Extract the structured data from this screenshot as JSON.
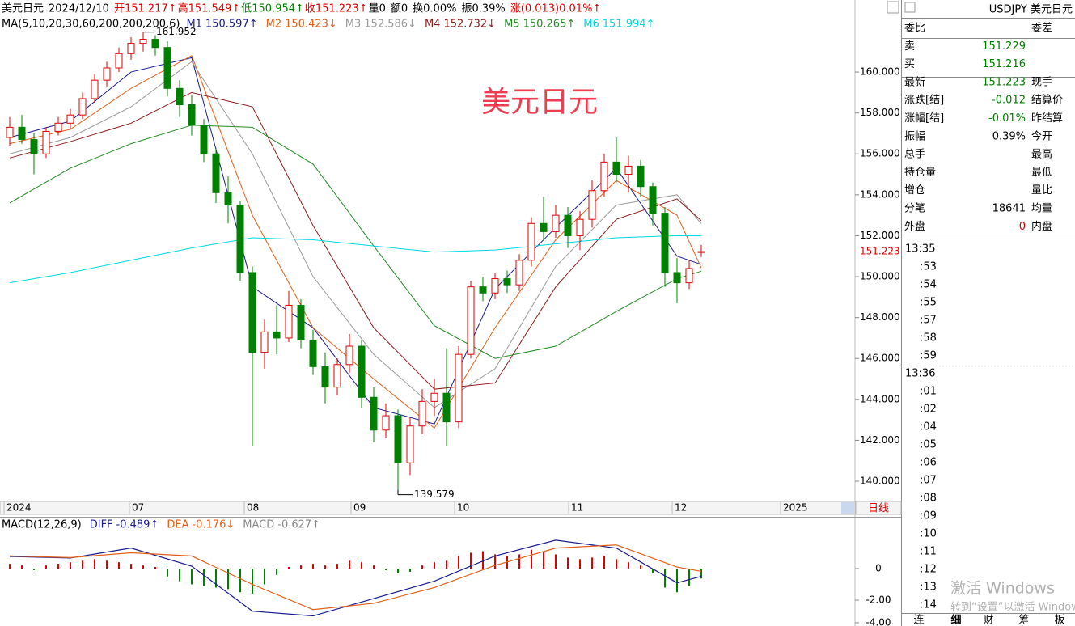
{
  "header": {
    "items": [
      {
        "text": "美元日元",
        "color": "#000000"
      },
      {
        "text": "2024/12/10",
        "color": "#000000"
      },
      {
        "text": "开151.217↑",
        "color": "#e00000"
      },
      {
        "text": "高151.549↑",
        "color": "#e00000"
      },
      {
        "text": "低150.954↑",
        "color": "#008000"
      },
      {
        "text": "收151.223↑",
        "color": "#e00000"
      },
      {
        "text": "量0",
        "color": "#000000"
      },
      {
        "text": "额0",
        "color": "#000000"
      },
      {
        "text": "换0.00%",
        "color": "#000000"
      },
      {
        "text": "振0.39%",
        "color": "#000000"
      },
      {
        "text": "涨(0.013)0.01%↑",
        "color": "#e00000"
      }
    ]
  },
  "watermark": "美元日元",
  "chart_data": [
    {
      "type": "candlestick",
      "ma_title": "MA(5,10,20,30,60,200,200,200,6)",
      "up_color": "#e00000",
      "down_color": "#008000",
      "ylim": [
        139.21,
        163.52
      ],
      "yticks": [
        {
          "value": 140,
          "label": "140.000"
        },
        {
          "value": 142,
          "label": "142.000"
        },
        {
          "value": 144,
          "label": "144.000"
        },
        {
          "value": 146,
          "label": "146.000"
        },
        {
          "value": 148,
          "label": "148.000"
        },
        {
          "value": 150,
          "label": "150.000"
        },
        {
          "value": 152,
          "label": "152.000"
        },
        {
          "value": 154,
          "label": "154.000"
        },
        {
          "value": 156,
          "label": "156.000"
        },
        {
          "value": 158,
          "label": "158.000"
        },
        {
          "value": 160,
          "label": "160.000"
        }
      ],
      "x_labels": [
        "2024",
        "07",
        "08",
        "09",
        "10",
        "11",
        "12",
        "2025"
      ],
      "period": "日线",
      "ohlc": [
        [
          156.8,
          157.8,
          156.4,
          157.3
        ],
        [
          157.3,
          157.9,
          156.5,
          156.7
        ],
        [
          156.7,
          157.0,
          155.0,
          156.0
        ],
        [
          156.0,
          157.3,
          155.8,
          157.1
        ],
        [
          157.1,
          157.8,
          156.9,
          157.5
        ],
        [
          157.5,
          158.2,
          157.2,
          157.9
        ],
        [
          157.9,
          159.0,
          157.7,
          158.7
        ],
        [
          158.7,
          159.9,
          158.5,
          159.6
        ],
        [
          159.6,
          160.5,
          159.3,
          160.2
        ],
        [
          160.2,
          161.2,
          160.0,
          160.9
        ],
        [
          160.9,
          161.7,
          160.6,
          161.4
        ],
        [
          161.4,
          161.952,
          161.0,
          161.6
        ],
        [
          161.6,
          161.8,
          160.8,
          161.2
        ],
        [
          161.2,
          161.5,
          158.8,
          159.2
        ],
        [
          159.2,
          159.6,
          157.8,
          158.4
        ],
        [
          158.4,
          158.9,
          156.9,
          157.4
        ],
        [
          157.4,
          157.7,
          155.6,
          156.0
        ],
        [
          156.0,
          156.3,
          153.6,
          154.1
        ],
        [
          154.1,
          154.9,
          152.6,
          153.5
        ],
        [
          153.5,
          153.7,
          149.8,
          150.2
        ],
        [
          150.2,
          150.5,
          141.7,
          146.3
        ],
        [
          146.3,
          147.9,
          145.5,
          147.3
        ],
        [
          147.3,
          148.6,
          146.2,
          147.0
        ],
        [
          147.0,
          149.3,
          146.8,
          148.6
        ],
        [
          148.6,
          148.9,
          146.5,
          146.9
        ],
        [
          146.9,
          147.4,
          145.2,
          145.6
        ],
        [
          145.6,
          146.3,
          143.8,
          144.6
        ],
        [
          144.6,
          146.0,
          144.2,
          145.7
        ],
        [
          145.7,
          147.2,
          145.3,
          146.6
        ],
        [
          146.6,
          146.9,
          143.6,
          144.1
        ],
        [
          144.1,
          144.6,
          141.9,
          142.5
        ],
        [
          142.5,
          143.8,
          142.1,
          143.2
        ],
        [
          143.2,
          143.5,
          139.579,
          140.9
        ],
        [
          140.9,
          143.1,
          140.3,
          142.7
        ],
        [
          142.7,
          144.5,
          142.3,
          143.9
        ],
        [
          143.9,
          145.0,
          143.2,
          144.3
        ],
        [
          144.3,
          146.5,
          141.7,
          142.9
        ],
        [
          142.9,
          146.6,
          142.6,
          146.2
        ],
        [
          146.2,
          149.8,
          146.0,
          149.5
        ],
        [
          149.5,
          150.0,
          148.8,
          149.2
        ],
        [
          149.2,
          150.2,
          148.9,
          149.9
        ],
        [
          149.9,
          150.3,
          149.2,
          149.6
        ],
        [
          149.6,
          151.1,
          149.3,
          150.8
        ],
        [
          150.8,
          152.9,
          150.5,
          152.6
        ],
        [
          152.6,
          153.9,
          151.8,
          152.2
        ],
        [
          152.2,
          153.5,
          151.9,
          153.0
        ],
        [
          153.0,
          153.4,
          151.4,
          152.0
        ],
        [
          152.0,
          153.2,
          151.3,
          152.8
        ],
        [
          152.8,
          154.7,
          152.4,
          154.2
        ],
        [
          154.2,
          156.0,
          153.9,
          155.6
        ],
        [
          155.6,
          156.8,
          154.6,
          155.0
        ],
        [
          155.0,
          155.9,
          154.1,
          155.4
        ],
        [
          155.4,
          155.7,
          153.9,
          154.4
        ],
        [
          154.4,
          154.6,
          152.5,
          153.1
        ],
        [
          153.1,
          153.4,
          149.5,
          150.2
        ],
        [
          150.2,
          150.9,
          148.7,
          149.7
        ],
        [
          149.7,
          150.8,
          149.4,
          150.4
        ],
        [
          151.217,
          151.549,
          150.954,
          151.223
        ]
      ],
      "series": [
        {
          "name": "M1",
          "legend": "150.597↑",
          "color": "#1a1a8c",
          "x": [
            0,
            5,
            10,
            15,
            20,
            25,
            30,
            35,
            40,
            45,
            50,
            55,
            57
          ],
          "values": [
            156.8,
            157.6,
            160.0,
            160.7,
            149.5,
            147.5,
            143.6,
            142.8,
            149.4,
            152.4,
            155.3,
            151.0,
            150.597
          ]
        },
        {
          "name": "M2",
          "legend": "150.423↓",
          "color": "#e0601a",
          "x": [
            0,
            5,
            10,
            15,
            20,
            25,
            30,
            35,
            40,
            45,
            50,
            55,
            57
          ],
          "values": [
            156.5,
            157.2,
            159.2,
            160.8,
            153.0,
            147.5,
            145.0,
            142.6,
            147.5,
            151.8,
            154.7,
            153.0,
            150.423
          ]
        },
        {
          "name": "M3",
          "legend": "152.586↓",
          "color": "#999999",
          "x": [
            0,
            5,
            10,
            15,
            20,
            25,
            30,
            35,
            40,
            45,
            50,
            55,
            57
          ],
          "values": [
            156.0,
            156.8,
            158.3,
            160.5,
            156.0,
            150.0,
            146.2,
            143.6,
            145.5,
            150.5,
            153.5,
            154.0,
            152.586
          ]
        },
        {
          "name": "M4",
          "legend": "152.732↓",
          "color": "#8b1a1a",
          "x": [
            0,
            5,
            10,
            15,
            20,
            25,
            30,
            35,
            40,
            45,
            50,
            55,
            57
          ],
          "values": [
            155.8,
            156.6,
            157.5,
            159.0,
            158.3,
            152.5,
            147.5,
            144.5,
            144.8,
            149.5,
            152.8,
            153.8,
            152.732
          ]
        },
        {
          "name": "M5",
          "legend": "150.265↑",
          "color": "#228b22",
          "x": [
            0,
            5,
            10,
            15,
            20,
            25,
            30,
            35,
            40,
            45,
            50,
            55,
            57
          ],
          "values": [
            153.6,
            155.3,
            156.5,
            157.4,
            157.3,
            155.5,
            151.5,
            147.6,
            146.0,
            146.6,
            148.3,
            149.9,
            150.265
          ]
        },
        {
          "name": "M6",
          "legend": "151.994↑",
          "color": "#00d8e0",
          "x": [
            0,
            5,
            10,
            15,
            20,
            25,
            30,
            35,
            40,
            45,
            50,
            55,
            57
          ],
          "values": [
            149.7,
            150.2,
            150.8,
            151.4,
            151.9,
            151.8,
            151.5,
            151.2,
            151.3,
            151.6,
            151.9,
            152.0,
            151.994
          ]
        }
      ]
    },
    {
      "type": "macd",
      "title": "MACD(12,26,9)",
      "hist_name": "MACD",
      "hist_legend": "-0.627↑",
      "hist_legend_color": "#888888",
      "ylim": [
        -3.64,
        3.23
      ],
      "yticks": [
        0,
        {
          "value": -2,
          "label": "-2.00"
        },
        {
          "value": -4,
          "label": "-4.00"
        }
      ],
      "up_color": "#e00000",
      "down_color": "#008000",
      "values": [
        0.3,
        0.2,
        -0.1,
        0.2,
        0.3,
        0.4,
        0.5,
        0.6,
        0.5,
        0.4,
        0.3,
        0.2,
        0.1,
        -0.5,
        -0.8,
        -1.0,
        -1.1,
        -1.2,
        -1.3,
        -1.5,
        -1.6,
        -1.0,
        -0.4,
        0.1,
        0.2,
        0.3,
        0.2,
        0.3,
        0.5,
        0.4,
        0.2,
        -0.1,
        -0.3,
        -0.2,
        0.2,
        0.4,
        0.5,
        0.8,
        1.0,
        1.1,
        0.9,
        0.8,
        0.9,
        1.2,
        1.1,
        0.9,
        0.7,
        0.6,
        0.7,
        0.8,
        0.6,
        0.4,
        0.2,
        -0.3,
        -1.2,
        -1.5,
        -1.1,
        -0.627
      ],
      "series": [
        {
          "name": "DIFF",
          "legend": "-0.489↑",
          "color": "#1a1a8c",
          "x": [
            0,
            5,
            10,
            15,
            20,
            25,
            30,
            35,
            40,
            45,
            50,
            55,
            57
          ],
          "values": [
            0.77,
            0.67,
            1.3,
            0.15,
            -2.7,
            -3.0,
            -1.9,
            -0.8,
            0.8,
            1.8,
            1.3,
            -0.9,
            -0.489
          ]
        },
        {
          "name": "DEA",
          "legend": "-0.176↓",
          "color": "#e0601a",
          "x": [
            0,
            5,
            10,
            15,
            20,
            25,
            30,
            35,
            40,
            45,
            50,
            55,
            57
          ],
          "values": [
            0.8,
            0.7,
            1.0,
            0.8,
            -1.0,
            -2.6,
            -2.2,
            -1.2,
            0.2,
            1.3,
            1.5,
            0.1,
            -0.176
          ]
        }
      ]
    }
  ],
  "panel": {
    "title": "USDJPY 美元日元",
    "rows": [
      {
        "label": "委比",
        "right": "委差"
      },
      {
        "label": "卖",
        "value": "151.229",
        "color": "#008000"
      },
      {
        "label": "买",
        "value": "151.216",
        "color": "#008000"
      },
      {
        "label": "最新",
        "value": "151.223",
        "color": "#008000",
        "right": "现手"
      },
      {
        "label": "涨跌[结]",
        "value": "-0.012",
        "color": "#008000",
        "right": "结算价"
      },
      {
        "label": "涨幅[结]",
        "value": "-0.01%",
        "color": "#008000",
        "right": "昨结算"
      },
      {
        "label": "振幅",
        "value": "0.39%",
        "color": "#000000",
        "right": "今开"
      },
      {
        "label": "总手",
        "right": "最高"
      },
      {
        "label": "持仓量",
        "right": "最低"
      },
      {
        "label": "增仓",
        "right": "量比"
      },
      {
        "label": "分笔",
        "value": "18641",
        "color": "#000000",
        "right": "均量"
      },
      {
        "label": "外盘",
        "value": "0",
        "color": "#e00000",
        "right": "内盘"
      }
    ],
    "times": [
      "13:35",
      ":53",
      ":54",
      ":55",
      ":57",
      ":58",
      ":59",
      "13:36",
      ":01",
      ":02",
      ":04",
      ":05",
      ":06",
      ":07",
      ":08",
      ":09",
      ":10",
      ":11",
      ":12",
      ":13",
      ":14"
    ],
    "tabs": [
      "连",
      "细",
      "财",
      "筹",
      "板"
    ]
  },
  "activation": {
    "title": "激活 Windows",
    "hint": "转到“设置”以激活 Windows。"
  }
}
